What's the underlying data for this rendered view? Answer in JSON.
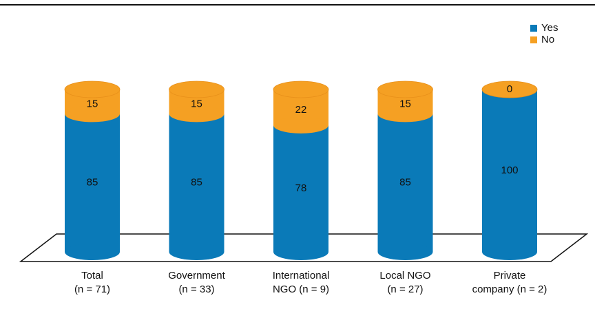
{
  "chart_data": {
    "type": "bar",
    "stacked": true,
    "categories": [
      [
        "Total",
        "(n = 71)"
      ],
      [
        "Government",
        "(n = 33)"
      ],
      [
        "International",
        "NGO (n = 9)"
      ],
      [
        "Local NGO",
        "(n = 27)"
      ],
      [
        "Private",
        "company (n = 2)"
      ]
    ],
    "series": [
      {
        "name": "Yes",
        "color": "#0a7ab8",
        "values": [
          85,
          85,
          78,
          85,
          100
        ]
      },
      {
        "name": "No",
        "color": "#f5a023",
        "values": [
          15,
          15,
          22,
          15,
          0
        ]
      }
    ],
    "legend": "top-right"
  }
}
